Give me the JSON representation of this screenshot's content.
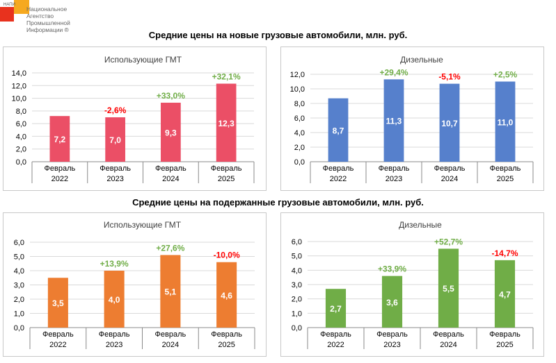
{
  "logo": {
    "small": "НАПИ",
    "text": "Национальное Агентство Промышленной Информации ®"
  },
  "sections": [
    "Средние цены на новые грузовые автомобили, млн. руб.",
    "Средние цены на подержанные грузовые автомобили, млн. руб."
  ],
  "colors": {
    "positive": "#70ad47",
    "negative": "#ff0000"
  },
  "chart_data": [
    {
      "type": "bar",
      "title": "Использующие ГМТ",
      "categories": [
        [
          "Февраль",
          "2022"
        ],
        [
          "Февраль",
          "2023"
        ],
        [
          "Февраль",
          "2024"
        ],
        [
          "Февраль",
          "2025"
        ]
      ],
      "values": [
        7.2,
        7.0,
        9.3,
        12.3
      ],
      "value_labels": [
        "7,2",
        "7,0",
        "9,3",
        "12,3"
      ],
      "changes": [
        "",
        "-2,6%",
        "+33,0%",
        "+32,1%"
      ],
      "ylim": [
        0,
        14
      ],
      "yticks": [
        "0,0",
        "2,0",
        "4,0",
        "6,0",
        "8,0",
        "10,0",
        "12,0",
        "14,0"
      ],
      "color": "#eb4f66",
      "grid": true
    },
    {
      "type": "bar",
      "title": "Дизельные",
      "categories": [
        [
          "Февраль",
          "2022"
        ],
        [
          "Февраль",
          "2023"
        ],
        [
          "Февраль",
          "2024"
        ],
        [
          "Февраль",
          "2025"
        ]
      ],
      "values": [
        8.7,
        11.3,
        10.7,
        11.0
      ],
      "value_labels": [
        "8,7",
        "11,3",
        "10,7",
        "11,0"
      ],
      "changes": [
        "",
        "+29,4%",
        "-5,1%",
        "+2,5%"
      ],
      "ylim": [
        0,
        12
      ],
      "yticks": [
        "0,0",
        "2,0",
        "4,0",
        "6,0",
        "8,0",
        "10,0",
        "12,0"
      ],
      "color": "#5680cc",
      "grid": true
    },
    {
      "type": "bar",
      "title": "Использующие ГМТ",
      "categories": [
        [
          "Февраль",
          "2022"
        ],
        [
          "Февраль",
          "2023"
        ],
        [
          "Февраль",
          "2024"
        ],
        [
          "Февраль",
          "2025"
        ]
      ],
      "values": [
        3.5,
        4.0,
        5.1,
        4.6
      ],
      "value_labels": [
        "3,5",
        "4,0",
        "5,1",
        "4,6"
      ],
      "changes": [
        "",
        "+13,9%",
        "+27,6%",
        "-10,0%"
      ],
      "ylim": [
        0,
        6
      ],
      "yticks": [
        "0,0",
        "1,0",
        "2,0",
        "3,0",
        "4,0",
        "5,0",
        "6,0"
      ],
      "color": "#ed7d31",
      "grid": true
    },
    {
      "type": "bar",
      "title": "Дизельные",
      "categories": [
        [
          "Февраль",
          "2022"
        ],
        [
          "Февраль",
          "2023"
        ],
        [
          "Февраль",
          "2024"
        ],
        [
          "Февраль",
          "2025"
        ]
      ],
      "values": [
        2.7,
        3.6,
        5.5,
        4.7
      ],
      "value_labels": [
        "2,7",
        "3,6",
        "5,5",
        "4,7"
      ],
      "changes": [
        "",
        "+33,9%",
        "+52,7%",
        "-14,7%"
      ],
      "ylim": [
        0,
        6
      ],
      "yticks": [
        "0,0",
        "1,0",
        "2,0",
        "3,0",
        "4,0",
        "5,0",
        "6,0"
      ],
      "color": "#70ad47",
      "grid": true
    }
  ]
}
